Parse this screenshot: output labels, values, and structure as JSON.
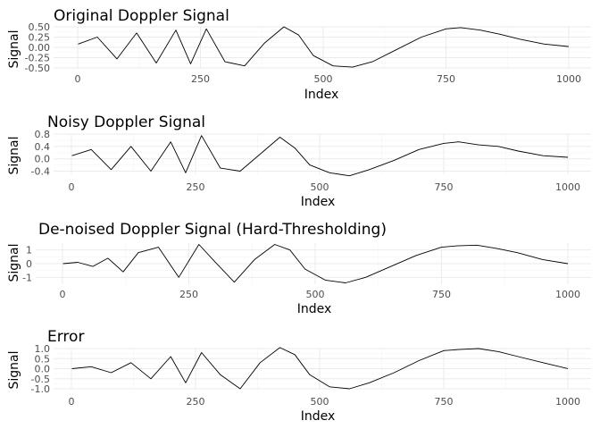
{
  "chart_data": [
    {
      "type": "line",
      "title": "Original Doppler Signal",
      "xlabel": "Index",
      "ylabel": "Signal",
      "xlim": [
        0,
        1000
      ],
      "ylim": [
        -0.5,
        0.5
      ],
      "x_ticks": [
        0,
        250,
        500,
        750,
        1000
      ],
      "y_ticks": [
        -0.5,
        -0.25,
        0,
        0.25,
        0.5
      ],
      "x_tick_labels": [
        "0",
        "250",
        "500",
        "750",
        "1000"
      ],
      "y_tick_labels": [
        "-0.50",
        "-0.25",
        "0.00",
        "0.25",
        "0.50"
      ],
      "grid": true,
      "series": [
        {
          "x": [
            1,
            40,
            80,
            120,
            160,
            200,
            230,
            262,
            300,
            340,
            380,
            420,
            450,
            480,
            520,
            560,
            600,
            650,
            700,
            750,
            780,
            820,
            860,
            900,
            950,
            1000
          ],
          "y": [
            0.08,
            0.25,
            -0.28,
            0.35,
            -0.38,
            0.42,
            -0.4,
            0.45,
            -0.35,
            -0.45,
            0.1,
            0.5,
            0.3,
            -0.2,
            -0.45,
            -0.48,
            -0.35,
            -0.05,
            0.25,
            0.45,
            0.48,
            0.42,
            0.32,
            0.2,
            0.08,
            0.02
          ]
        }
      ]
    },
    {
      "type": "line",
      "title": "Noisy Doppler Signal",
      "xlabel": "Index",
      "ylabel": "Signal",
      "xlim": [
        0,
        1000
      ],
      "ylim": [
        -0.5,
        0.8
      ],
      "x_ticks": [
        0,
        250,
        500,
        750,
        1000
      ],
      "y_ticks": [
        -0.4,
        0,
        0.4,
        0.8
      ],
      "x_tick_labels": [
        "0",
        "250",
        "500",
        "750",
        "1000"
      ],
      "y_tick_labels": [
        "-0.4",
        "0.0",
        "0.4",
        "0.8"
      ],
      "grid": true,
      "series": [
        {
          "x": [
            1,
            40,
            80,
            120,
            160,
            200,
            230,
            262,
            300,
            340,
            380,
            420,
            450,
            480,
            520,
            560,
            600,
            650,
            700,
            750,
            780,
            820,
            860,
            900,
            950,
            1000
          ],
          "y": [
            0.1,
            0.3,
            -0.35,
            0.4,
            -0.4,
            0.55,
            -0.45,
            0.75,
            -0.3,
            -0.4,
            0.15,
            0.7,
            0.35,
            -0.2,
            -0.45,
            -0.55,
            -0.35,
            -0.05,
            0.3,
            0.5,
            0.55,
            0.45,
            0.4,
            0.25,
            0.1,
            0.05
          ]
        }
      ]
    },
    {
      "type": "line",
      "title": "De-noised Doppler Signal (Hard-Thresholding)",
      "xlabel": "Index",
      "ylabel": "Signal",
      "xlim": [
        0,
        1000
      ],
      "ylim": [
        -1.5,
        1.5
      ],
      "x_ticks": [
        0,
        250,
        500,
        750,
        1000
      ],
      "y_ticks": [
        -1,
        0,
        1
      ],
      "x_tick_labels": [
        "0",
        "250",
        "500",
        "750",
        "1000"
      ],
      "y_tick_labels": [
        "-1",
        "0",
        "1"
      ],
      "grid": true,
      "series": [
        {
          "x": [
            1,
            30,
            60,
            90,
            120,
            150,
            190,
            230,
            270,
            300,
            340,
            380,
            420,
            450,
            480,
            520,
            560,
            600,
            650,
            700,
            750,
            780,
            820,
            860,
            900,
            950,
            1000
          ],
          "y": [
            0.0,
            0.1,
            -0.2,
            0.4,
            -0.6,
            0.8,
            1.2,
            -1.0,
            1.4,
            0.2,
            -1.35,
            0.3,
            1.4,
            1.0,
            -0.4,
            -1.2,
            -1.4,
            -1.0,
            -0.2,
            0.6,
            1.2,
            1.3,
            1.35,
            1.1,
            0.8,
            0.3,
            0.0
          ]
        }
      ]
    },
    {
      "type": "line",
      "title": "Error",
      "xlabel": "Index",
      "ylabel": "Signal",
      "xlim": [
        0,
        1000
      ],
      "ylim": [
        -1.0,
        1.0
      ],
      "x_ticks": [
        0,
        250,
        500,
        750,
        1000
      ],
      "y_ticks": [
        -1.0,
        -0.5,
        0,
        0.5,
        1.0
      ],
      "x_tick_labels": [
        "0",
        "250",
        "500",
        "750",
        "1000"
      ],
      "y_tick_labels": [
        "-1.0",
        "-0.5",
        "0.0",
        "0.5",
        "1.0"
      ],
      "grid": true,
      "series": [
        {
          "x": [
            1,
            40,
            80,
            120,
            160,
            200,
            230,
            262,
            300,
            340,
            380,
            420,
            450,
            480,
            520,
            560,
            600,
            650,
            700,
            750,
            780,
            820,
            860,
            900,
            950,
            1000
          ],
          "y": [
            0.0,
            0.1,
            -0.2,
            0.3,
            -0.5,
            0.6,
            -0.7,
            0.8,
            -0.3,
            -1.0,
            0.3,
            1.05,
            0.7,
            -0.3,
            -0.9,
            -1.0,
            -0.7,
            -0.2,
            0.4,
            0.9,
            0.95,
            1.0,
            0.85,
            0.6,
            0.3,
            0.0
          ]
        }
      ]
    }
  ]
}
